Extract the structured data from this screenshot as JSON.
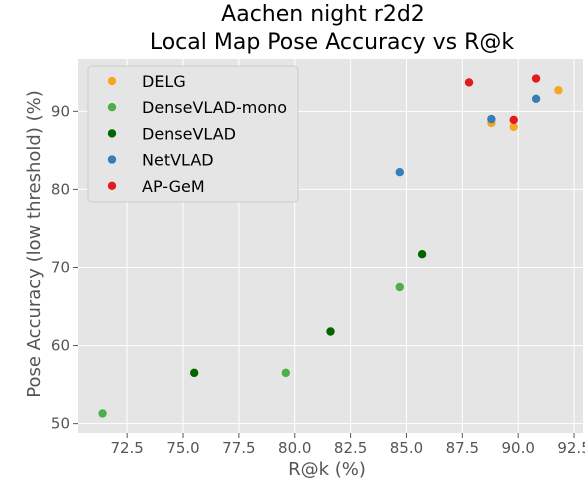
{
  "chart_data": {
    "type": "scatter",
    "title_lines": [
      "Aachen night r2d2",
      "Local Map Pose Accuracy vs R@k"
    ],
    "xlabel": "R@k (%)",
    "ylabel": "Pose Accuracy (low threshold) (%)",
    "xlim": [
      70.3,
      92.9
    ],
    "ylim": [
      48.8,
      96.7
    ],
    "xticks": [
      72.5,
      75.0,
      77.5,
      80.0,
      82.5,
      85.0,
      87.5,
      90.0,
      92.5
    ],
    "xtick_labels": [
      "72.5",
      "75.0",
      "77.5",
      "80.0",
      "82.5",
      "85.0",
      "87.5",
      "90.0",
      "92.5"
    ],
    "yticks": [
      50,
      60,
      70,
      80,
      90
    ],
    "ytick_labels": [
      "50",
      "60",
      "70",
      "80",
      "90"
    ],
    "grid": true,
    "legend_position": "top-left",
    "series": [
      {
        "name": "DELG",
        "color": "#f5a623",
        "points": [
          [
            88.8,
            88.5
          ],
          [
            89.8,
            88.0
          ],
          [
            91.8,
            92.7
          ]
        ]
      },
      {
        "name": "DenseVLAD-mono",
        "color": "#4daf4a",
        "points": [
          [
            71.4,
            51.3
          ],
          [
            79.6,
            56.5
          ],
          [
            84.7,
            67.5
          ]
        ]
      },
      {
        "name": "DenseVLAD",
        "color": "#006400",
        "points": [
          [
            75.5,
            56.5
          ],
          [
            81.6,
            61.8
          ],
          [
            85.7,
            71.7
          ]
        ]
      },
      {
        "name": "NetVLAD",
        "color": "#377eb8",
        "points": [
          [
            84.7,
            82.2
          ],
          [
            88.8,
            89.0
          ],
          [
            90.8,
            91.6
          ]
        ]
      },
      {
        "name": "AP-GeM",
        "color": "#e41a1c",
        "points": [
          [
            87.8,
            93.7
          ],
          [
            89.8,
            88.9
          ],
          [
            90.8,
            94.2
          ]
        ]
      }
    ]
  }
}
